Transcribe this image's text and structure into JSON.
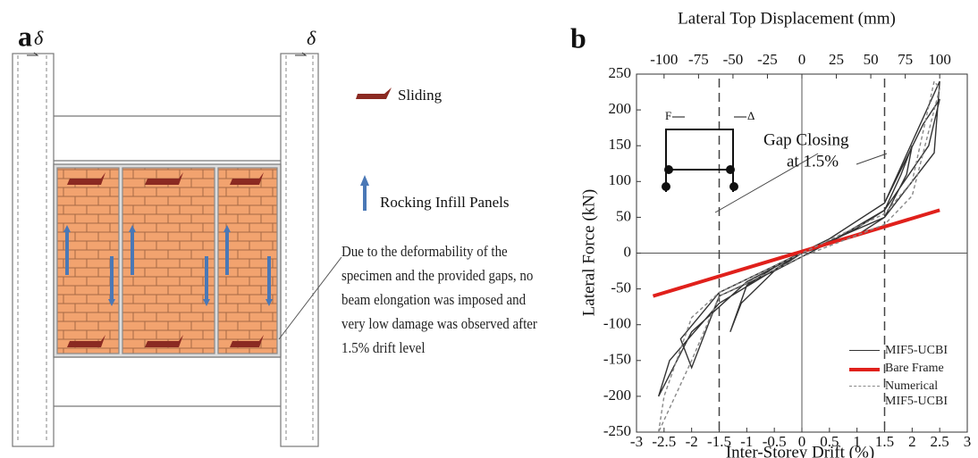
{
  "panel_a": {
    "label": "a",
    "delta_left": "δ",
    "delta_right": "δ",
    "legend": [
      "Sliding",
      "Rocking Infill Panels"
    ],
    "note": "Due to the deformability of the specimen and the provided gaps, no beam elongation was imposed and very low damage was observed after 1.5% drift level"
  },
  "chart_data": {
    "type": "line",
    "panel_label": "b",
    "xlabel": "Inter-Storey Drift (%)",
    "ylabel": "Lateral Force (kN)",
    "x2_label": "Lateral Top Displacement (mm)",
    "xlim": [
      -3,
      3
    ],
    "xticks": [
      -3,
      -2.5,
      -2,
      -1.5,
      -1,
      -0.5,
      0,
      0.5,
      1,
      1.5,
      2,
      2.5,
      3
    ],
    "x2lim": [
      -120,
      120
    ],
    "x2ticks": [
      -100,
      -75,
      -50,
      -25,
      0,
      25,
      50,
      75,
      100
    ],
    "ylim": [
      -250,
      250
    ],
    "yticks": [
      -250,
      -200,
      -150,
      -100,
      -50,
      0,
      50,
      100,
      150,
      200,
      250
    ],
    "ref_lines": [
      -1.5,
      1.5
    ],
    "annotations": [
      "Gap Closing",
      "at 1.5%"
    ],
    "inset_labels": [
      "F",
      "Δ"
    ],
    "legend": "lower right",
    "series": [
      {
        "name": "MIF5-UCBI",
        "color": "#333333",
        "line_style": "solid",
        "x": [
          0,
          0.5,
          1,
          1.5,
          1.8,
          2,
          1.9,
          1.5,
          1,
          0,
          -0.5,
          -1,
          -1.3,
          -1.1,
          -0.5,
          0,
          0.5,
          1.5,
          2.2,
          2.5,
          2.3,
          1.5,
          0.5,
          -0.5,
          -1.5,
          -2,
          -2.2,
          -1.5,
          -0.5,
          0.5,
          1.5,
          2.5,
          2.4,
          1.5,
          0,
          -1,
          -2,
          -2.6,
          -2.4,
          -1.5,
          0
        ],
        "values": [
          0,
          15,
          35,
          60,
          110,
          150,
          110,
          50,
          25,
          0,
          -20,
          -45,
          -110,
          -70,
          -25,
          0,
          20,
          70,
          180,
          215,
          150,
          60,
          15,
          -25,
          -60,
          -160,
          -120,
          -55,
          -18,
          20,
          70,
          240,
          140,
          50,
          0,
          -40,
          -110,
          -200,
          -150,
          -70,
          0
        ]
      },
      {
        "name": "Bare Frame",
        "color": "#e0201b",
        "line_style": "solid",
        "x": [
          -2.7,
          2.5
        ],
        "values": [
          -60,
          60
        ]
      },
      {
        "name": "Numerical MIF5-UCBI",
        "color": "#888888",
        "line_style": "dashed",
        "x": [
          -2.6,
          -2.5,
          -2,
          -1.5,
          0,
          1.5,
          2,
          2.4,
          2.5,
          2,
          1.5,
          0,
          -1.5,
          -2,
          -2.6
        ],
        "values": [
          -250,
          -200,
          -90,
          -55,
          0,
          55,
          100,
          240,
          230,
          80,
          40,
          -5,
          -60,
          -150,
          -250
        ]
      }
    ]
  }
}
